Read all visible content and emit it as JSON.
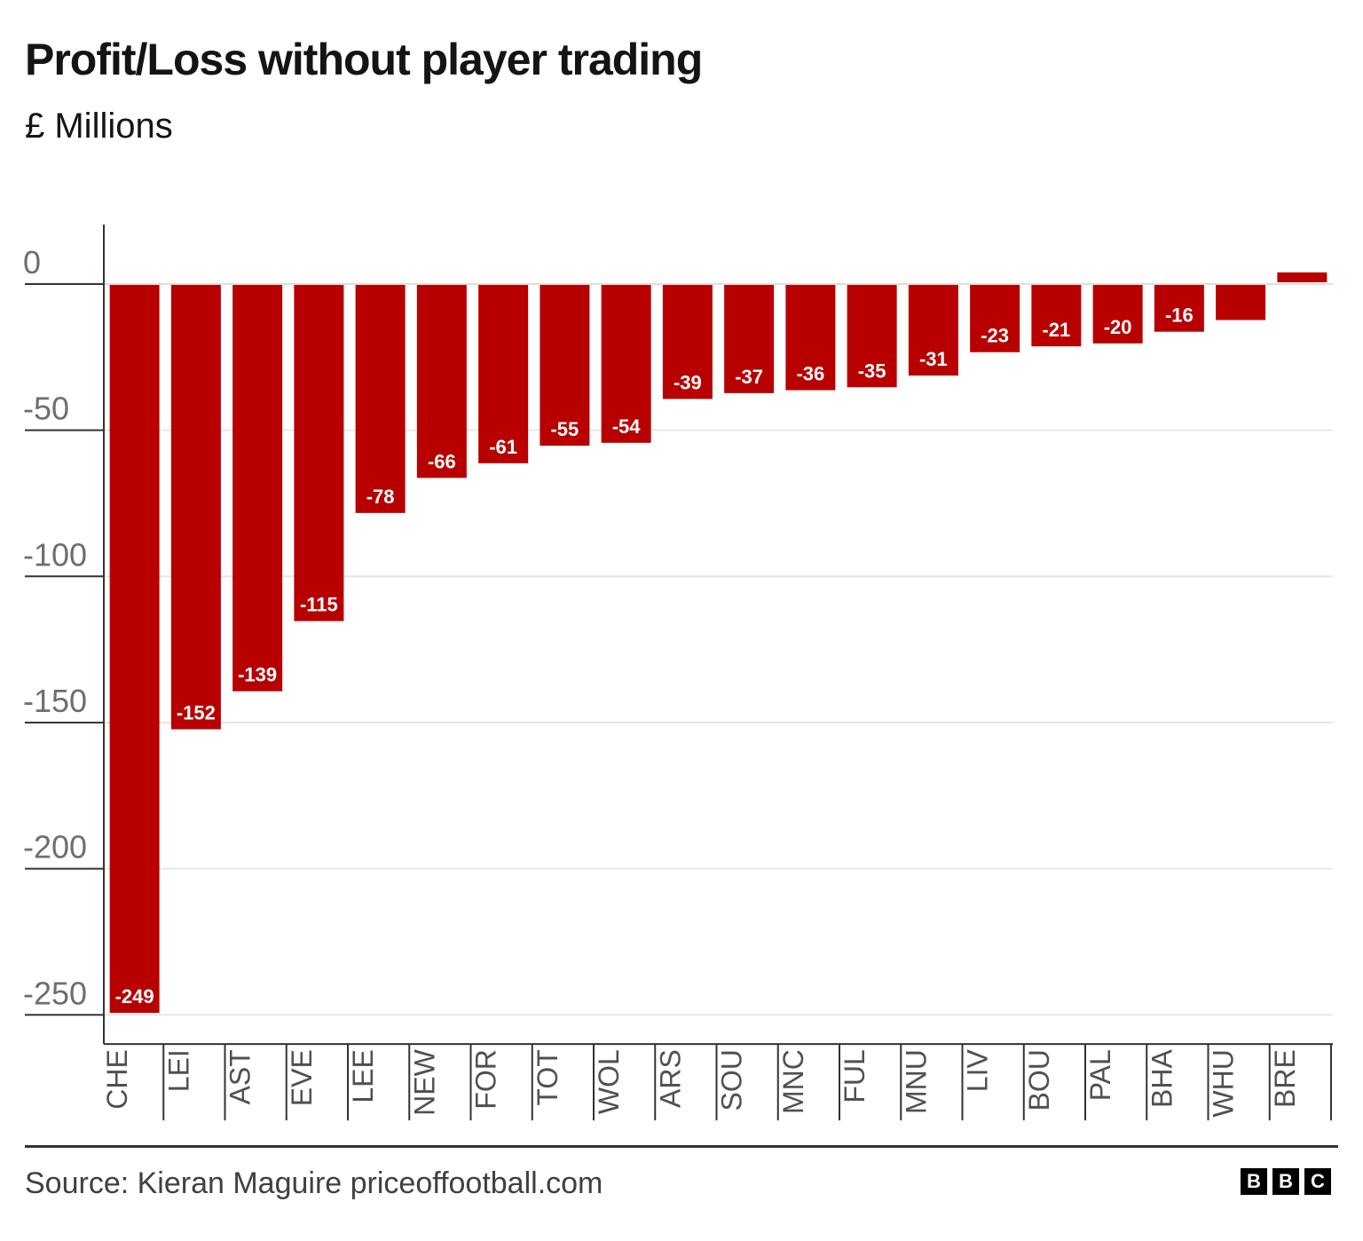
{
  "chart_data": {
    "type": "bar",
    "title": "Profit/Loss without player trading",
    "subtitle": "£ Millions",
    "categories": [
      "CHE",
      "LEI",
      "AST",
      "EVE",
      "LEE",
      "NEW",
      "FOR",
      "TOT",
      "WOL",
      "ARS",
      "SOU",
      "MNC",
      "FUL",
      "MNU",
      "LIV",
      "BOU",
      "PAL",
      "BHA",
      "WHU",
      "BRE"
    ],
    "values": [
      -249,
      -152,
      -139,
      -115,
      -78,
      -66,
      -61,
      -55,
      -54,
      -39,
      -37,
      -36,
      -35,
      -31,
      -23,
      -21,
      -20,
      -16,
      -12,
      4
    ],
    "data_labels": [
      "-249",
      "-152",
      "-139",
      "-115",
      "-78",
      "-66",
      "-61",
      "-55",
      "-54",
      "-39",
      "-37",
      "-36",
      "-35",
      "-31",
      "-23",
      "-21",
      "-20",
      "-16",
      "",
      ""
    ],
    "yticks": [
      0,
      -50,
      -100,
      -150,
      -200,
      -250
    ],
    "ylim": [
      -260,
      20
    ],
    "grid": true,
    "bar_color": "#b80000",
    "source": "Source: Kieran Maguire priceoffootball.com"
  },
  "logo": [
    "B",
    "B",
    "C"
  ]
}
